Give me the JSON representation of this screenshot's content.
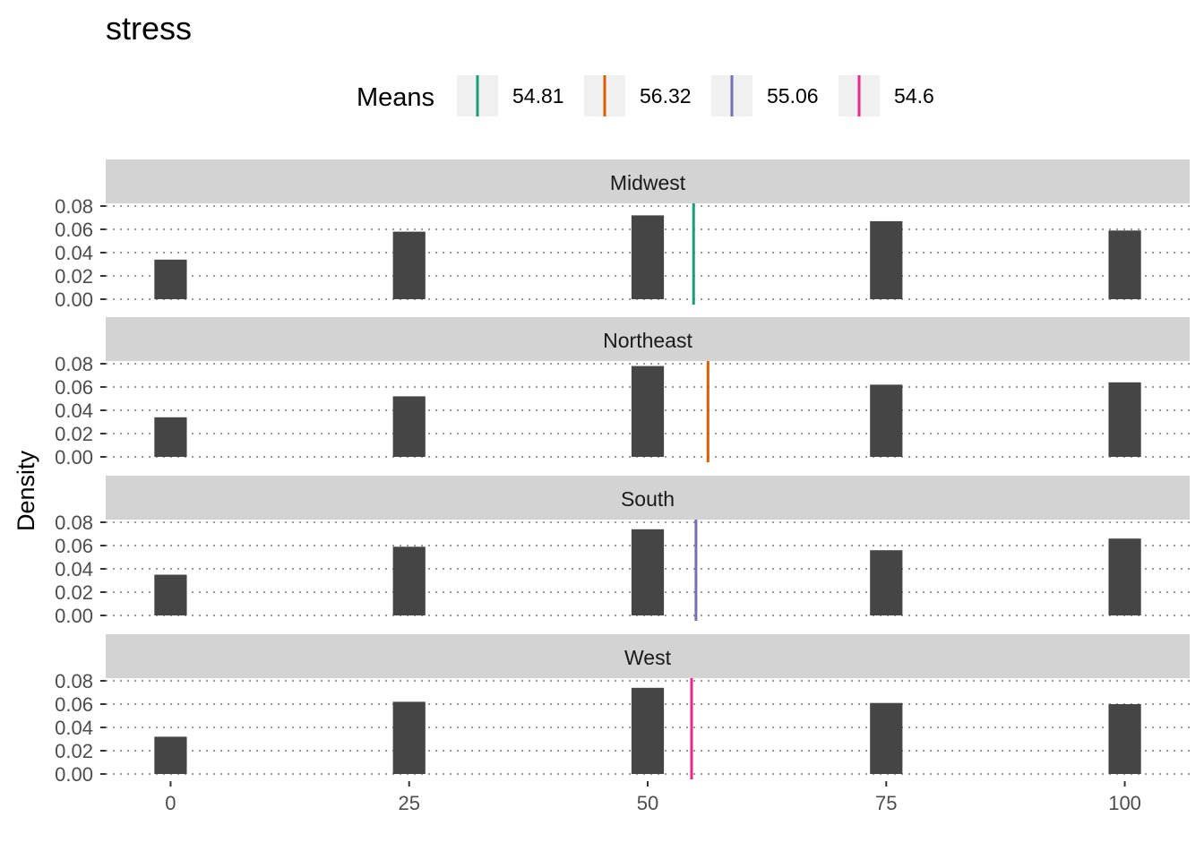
{
  "chart_data": {
    "type": "bar",
    "title": "stress",
    "xlabel": "",
    "ylabel": "Density",
    "xlim": [
      -6.8,
      106.8
    ],
    "ylim": [
      0,
      0.08
    ],
    "x_ticks": [
      0,
      25,
      50,
      75,
      100
    ],
    "x_tick_labels": [
      "0",
      "25",
      "50",
      "75",
      "100"
    ],
    "y_ticks": [
      0,
      0.02,
      0.04,
      0.06,
      0.08
    ],
    "y_tick_labels": [
      "0.00",
      "0.02",
      "0.04",
      "0.06",
      "0.08"
    ],
    "bar_x": [
      0,
      25,
      50,
      75,
      100
    ],
    "bar_width": 3.4,
    "bar_color": "#454545",
    "grid": "dotted horizontal",
    "legend": {
      "title": "Means",
      "position": "top",
      "entries": [
        {
          "label": "54.81",
          "color": "#1B9E77"
        },
        {
          "label": "56.32",
          "color": "#D95F02"
        },
        {
          "label": "55.06",
          "color": "#7570B3"
        },
        {
          "label": "54.6",
          "color": "#E7298A"
        }
      ]
    },
    "panels": [
      {
        "label": "Midwest",
        "values": [
          0.034,
          0.058,
          0.072,
          0.067,
          0.059
        ],
        "mean": 54.81,
        "mean_color": "#1B9E77"
      },
      {
        "label": "Northeast",
        "values": [
          0.034,
          0.052,
          0.078,
          0.062,
          0.064
        ],
        "mean": 56.32,
        "mean_color": "#D95F02"
      },
      {
        "label": "South",
        "values": [
          0.035,
          0.059,
          0.074,
          0.056,
          0.066
        ],
        "mean": 55.06,
        "mean_color": "#7570B3"
      },
      {
        "label": "West",
        "values": [
          0.032,
          0.062,
          0.074,
          0.061,
          0.06
        ],
        "mean": 54.6,
        "mean_color": "#E7298A"
      }
    ]
  }
}
